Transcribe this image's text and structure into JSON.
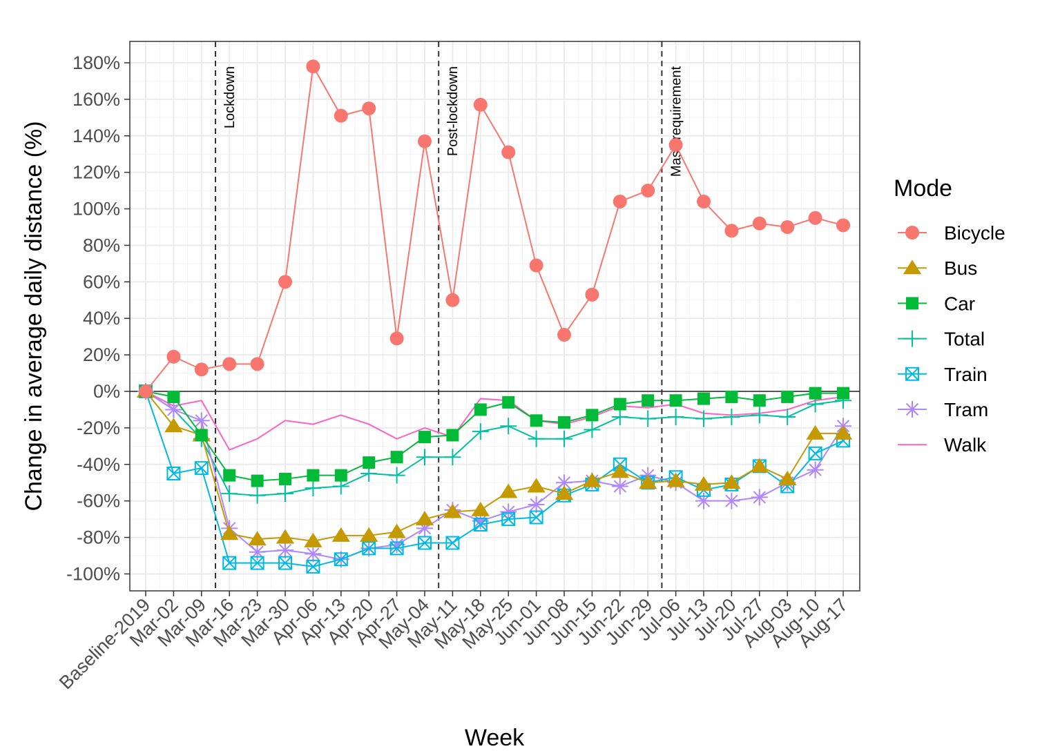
{
  "chart_data": {
    "type": "line",
    "xlabel": "Week",
    "ylabel": "Change in average daily distance (%)",
    "categories": [
      "Baseline-2019",
      "Mar-02",
      "Mar-09",
      "Mar-16",
      "Mar-23",
      "Mar-30",
      "Apr-06",
      "Apr-13",
      "Apr-20",
      "Apr-27",
      "May-04",
      "May-11",
      "May-18",
      "May-25",
      "Jun-01",
      "Jun-08",
      "Jun-15",
      "Jun-22",
      "Jun-29",
      "Jul-06",
      "Jul-13",
      "Jul-20",
      "Jul-27",
      "Aug-03",
      "Aug-10",
      "Aug-17"
    ],
    "ylim": [
      -108,
      188
    ],
    "yticks": [
      -100,
      -80,
      -60,
      -40,
      -20,
      0,
      20,
      40,
      60,
      80,
      100,
      120,
      140,
      160,
      180
    ],
    "ytick_labels": [
      "-100%",
      "-80%",
      "-60%",
      "-40%",
      "-20%",
      "0%",
      "20%",
      "40%",
      "60%",
      "80%",
      "100%",
      "120%",
      "140%",
      "160%",
      "180%"
    ],
    "grid": true,
    "legend_title": "Mode",
    "legend_position": "right",
    "annotations": [
      {
        "text": "Lockdown",
        "between": [
          "Mar-09",
          "Mar-16"
        ]
      },
      {
        "text": "Post-lockdown",
        "between": [
          "May-04",
          "May-11"
        ]
      },
      {
        "text": "Mask requirement",
        "between": [
          "Jun-29",
          "Jul-06"
        ]
      }
    ],
    "series": [
      {
        "name": "Bicycle",
        "color": "#F8766D",
        "marker": "circle",
        "values": [
          0,
          19,
          12,
          15,
          15,
          60,
          178,
          151,
          155,
          29,
          137,
          50,
          157,
          131,
          69,
          31,
          53,
          104,
          110,
          135,
          104,
          88,
          92,
          90,
          95,
          91
        ]
      },
      {
        "name": "Bus",
        "color": "#C49A00",
        "marker": "triangle",
        "values": [
          0,
          -19,
          -24,
          -78,
          -81,
          -80,
          -82,
          -79,
          -79,
          -77,
          -70,
          -66,
          -65,
          -55,
          -52,
          -56,
          -49,
          -44,
          -50,
          -49,
          -51,
          -50,
          -41,
          -48,
          -23,
          -23
        ]
      },
      {
        "name": "Car",
        "color": "#00BA38",
        "marker": "square",
        "values": [
          0,
          -3,
          -24,
          -46,
          -49,
          -48,
          -46,
          -46,
          -39,
          -36,
          -25,
          -24,
          -10,
          -6,
          -16,
          -17,
          -13,
          -7,
          -5,
          -5,
          -4,
          -3,
          -5,
          -3,
          -1,
          -1
        ]
      },
      {
        "name": "Total",
        "color": "#00C19F",
        "marker": "plus",
        "values": [
          0,
          -10,
          -26,
          -56,
          -57,
          -56,
          -53,
          -52,
          -45,
          -46,
          -36,
          -36,
          -22,
          -19,
          -26,
          -26,
          -21,
          -14,
          -15,
          -14,
          -15,
          -14,
          -13,
          -14,
          -7,
          -5
        ]
      },
      {
        "name": "Train",
        "color": "#00B9E3",
        "marker": "square-x",
        "values": [
          0,
          -45,
          -42,
          -94,
          -94,
          -94,
          -96,
          -92,
          -86,
          -86,
          -83,
          -83,
          -73,
          -70,
          -69,
          -57,
          -51,
          -40,
          -50,
          -47,
          -54,
          -51,
          -41,
          -52,
          -34,
          -27
        ]
      },
      {
        "name": "Tram",
        "color": "#AE87FF",
        "marker": "asterisk",
        "values": [
          0,
          -10,
          -16,
          -75,
          -88,
          -87,
          -89,
          -92,
          -86,
          -84,
          -75,
          -65,
          -71,
          -66,
          -62,
          -50,
          -49,
          -52,
          -46,
          -50,
          -60,
          -60,
          -58,
          -50,
          -43,
          -19
        ]
      },
      {
        "name": "Walk",
        "color": "#FF61C3",
        "marker": "none",
        "values": [
          0,
          -8,
          -5,
          -32,
          -26,
          -16,
          -18,
          -13,
          -18,
          -26,
          -20,
          -25,
          -4,
          -5,
          -16,
          -18,
          -14,
          -8,
          -9,
          -7,
          -12,
          -13,
          -12,
          -10,
          -5,
          -3
        ]
      }
    ]
  }
}
